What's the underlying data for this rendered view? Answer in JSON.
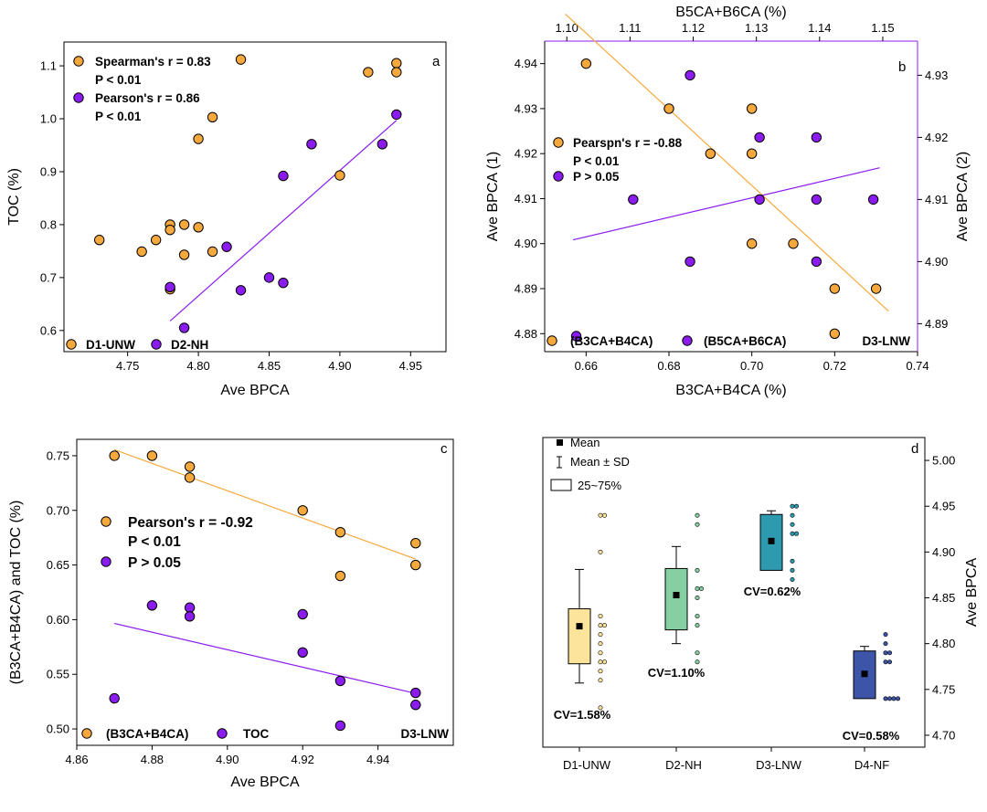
{
  "colors": {
    "orange": "#F5A93C",
    "purple": "#8B1CF0",
    "boxD1": "#FCE49A",
    "boxD2": "#86CFA2",
    "boxD3": "#2E9AB0",
    "boxD4": "#3D55A8"
  },
  "chart_data": [
    {
      "panel": "a",
      "type": "scatter",
      "xlabel": "Ave BPCA",
      "ylabel": "TOC (%)",
      "xlim": [
        4.705,
        4.975
      ],
      "ylim": [
        0.56,
        1.145
      ],
      "xticks": [
        "4.75",
        "4.80",
        "4.85",
        "4.90",
        "4.95"
      ],
      "yticks": [
        "0.6",
        "0.7",
        "0.8",
        "0.9",
        "1.0",
        "1.1"
      ],
      "stats": [
        "Spearman's r = 0.83",
        "P < 0.01",
        "Pearson's r = 0.86",
        "P < 0.01"
      ],
      "legend": [
        "D1-UNW",
        "D2-NH"
      ],
      "series": [
        {
          "name": "D1-UNW",
          "color": "orange",
          "points": [
            [
              4.73,
              0.771
            ],
            [
              4.76,
              0.749
            ],
            [
              4.77,
              0.771
            ],
            [
              4.78,
              0.8
            ],
            [
              4.78,
              0.79
            ],
            [
              4.78,
              0.678
            ],
            [
              4.79,
              0.8
            ],
            [
              4.79,
              0.743
            ],
            [
              4.8,
              0.795
            ],
            [
              4.8,
              0.962
            ],
            [
              4.81,
              1.003
            ],
            [
              4.81,
              0.749
            ],
            [
              4.83,
              1.112
            ],
            [
              4.9,
              0.893
            ],
            [
              4.92,
              1.088
            ],
            [
              4.94,
              1.105
            ],
            [
              4.94,
              1.088
            ]
          ]
        },
        {
          "name": "D2-NH",
          "color": "purple",
          "points": [
            [
              4.78,
              0.682
            ],
            [
              4.79,
              0.605
            ],
            [
              4.82,
              0.758
            ],
            [
              4.83,
              0.676
            ],
            [
              4.85,
              0.7
            ],
            [
              4.86,
              0.69
            ],
            [
              4.86,
              0.892
            ],
            [
              4.88,
              0.952
            ],
            [
              4.93,
              0.952
            ],
            [
              4.94,
              1.008
            ]
          ]
        }
      ],
      "fit": {
        "series": "D2-NH",
        "from": [
          4.78,
          0.618
        ],
        "to": [
          4.94,
          0.997
        ]
      }
    },
    {
      "panel": "b",
      "type": "scatter",
      "xlabel": "B3CA+B4CA (%)",
      "ylabel": "Ave BPCA  (1)",
      "x2label": "B5CA+B6CA (%)",
      "y2label": "Ave BPCA  (2)",
      "xlim": [
        0.65,
        0.74
      ],
      "ylim": [
        4.876,
        4.945
      ],
      "x2lim": [
        1.0965,
        1.1555
      ],
      "y2lim": [
        4.8855,
        4.9355
      ],
      "xticks": [
        "0.66",
        "0.68",
        "0.70",
        "0.72",
        "0.74"
      ],
      "yticks": [
        "4.88",
        "4.89",
        "4.90",
        "4.91",
        "4.92",
        "4.93",
        "4.94"
      ],
      "x2ticks": [
        "1.10",
        "1.11",
        "1.12",
        "1.13",
        "1.14",
        "1.15"
      ],
      "y2ticks": [
        "4.89",
        "4.90",
        "4.91",
        "4.92",
        "4.93"
      ],
      "stats": [
        "Pearspn's r = -0.88",
        "P < 0.01",
        "P > 0.05"
      ],
      "legend": [
        "(B3CA+B4CA)",
        "(B5CA+B6CA)"
      ],
      "tag": "D3-LNW",
      "series": [
        {
          "name": "(B3CA+B4CA)",
          "color": "orange",
          "points": [
            [
              0.66,
              4.94
            ],
            [
              0.68,
              4.93
            ],
            [
              0.69,
              4.92
            ],
            [
              0.7,
              4.93
            ],
            [
              0.7,
              4.92
            ],
            [
              0.7,
              4.9
            ],
            [
              0.71,
              4.9
            ],
            [
              0.72,
              4.89
            ],
            [
              0.72,
              4.88
            ],
            [
              0.73,
              4.89
            ]
          ]
        },
        {
          "name": "(B5CA+B6CA)",
          "color": "purple",
          "points": [
            [
              1.1015,
              4.888
            ],
            [
              1.1105,
              4.91
            ],
            [
              1.1195,
              4.9
            ],
            [
              1.1195,
              4.93
            ],
            [
              1.1305,
              4.91
            ],
            [
              1.1305,
              4.92
            ],
            [
              1.1395,
              4.9
            ],
            [
              1.1395,
              4.91
            ],
            [
              1.1395,
              4.92
            ],
            [
              1.1485,
              4.91
            ]
          ]
        }
      ],
      "fit1": {
        "from": [
          0.655,
          4.951
        ],
        "to": [
          0.733,
          4.885
        ]
      },
      "fit2": {
        "from": [
          1.101,
          4.9035
        ],
        "to": [
          1.1495,
          4.9151
        ]
      }
    },
    {
      "panel": "c",
      "type": "scatter",
      "xlabel": "Ave BPCA",
      "ylabel": "(B3CA+B4CA) and TOC (%)",
      "xlim": [
        4.86,
        4.96
      ],
      "ylim": [
        0.485,
        0.765
      ],
      "xticks": [
        "4.86",
        "4.88",
        "4.90",
        "4.92",
        "4.94"
      ],
      "yticks": [
        "0.50",
        "0.55",
        "0.60",
        "0.65",
        "0.70",
        "0.75"
      ],
      "stats": [
        "Pearson's r = -0.92",
        "P < 0.01",
        "P > 0.05"
      ],
      "legend": [
        "(B3CA+B4CA)",
        "TOC"
      ],
      "tag": "D3-LNW",
      "series": [
        {
          "name": "(B3CA+B4CA)",
          "color": "orange",
          "points": [
            [
              4.87,
              0.75
            ],
            [
              4.88,
              0.75
            ],
            [
              4.89,
              0.74
            ],
            [
              4.89,
              0.73
            ],
            [
              4.92,
              0.7
            ],
            [
              4.93,
              0.68
            ],
            [
              4.93,
              0.64
            ],
            [
              4.95,
              0.67
            ],
            [
              4.95,
              0.65
            ]
          ]
        },
        {
          "name": "TOC",
          "color": "purple",
          "points": [
            [
              4.87,
              0.528
            ],
            [
              4.88,
              0.613
            ],
            [
              4.89,
              0.611
            ],
            [
              4.89,
              0.603
            ],
            [
              4.92,
              0.605
            ],
            [
              4.92,
              0.57
            ],
            [
              4.93,
              0.544
            ],
            [
              4.93,
              0.503
            ],
            [
              4.95,
              0.533
            ],
            [
              4.95,
              0.522
            ]
          ]
        }
      ],
      "fit1": {
        "from": [
          4.87,
          0.7555
        ],
        "to": [
          4.95,
          0.6555
        ]
      },
      "fit2": {
        "from": [
          4.87,
          0.5965
        ],
        "to": [
          4.95,
          0.5325
        ]
      }
    },
    {
      "panel": "d",
      "type": "box",
      "ylabel": "Ave BPCA",
      "ylim": [
        4.687,
        5.025
      ],
      "yticks": [
        "4.70",
        "4.75",
        "4.80",
        "4.85",
        "4.90",
        "4.95",
        "5.00"
      ],
      "categories": [
        "D1-UNW",
        "D2-NH",
        "D3-LNW",
        "D4-NF"
      ],
      "legend": [
        "Mean",
        "Mean ± SD",
        "25~75%"
      ],
      "boxes": [
        {
          "q1": 4.778,
          "q3": 4.838,
          "mean": 4.819,
          "sd_low": 4.757,
          "sd_high": 4.881,
          "cv": "CV=1.58%",
          "color": "boxD1",
          "points": [
            4.94,
            4.94,
            4.9,
            4.83,
            4.82,
            4.82,
            4.81,
            4.8,
            4.79,
            4.78,
            4.78,
            4.77,
            4.76,
            4.73
          ]
        },
        {
          "q1": 4.815,
          "q3": 4.882,
          "mean": 4.853,
          "sd_low": 4.8,
          "sd_high": 4.906,
          "cv": "CV=1.10%",
          "color": "boxD2",
          "points": [
            4.94,
            4.93,
            4.88,
            4.86,
            4.86,
            4.85,
            4.83,
            4.82,
            4.79,
            4.78
          ]
        },
        {
          "q1": 4.88,
          "q3": 4.941,
          "mean": 4.912,
          "sd_low": 4.884,
          "sd_high": 4.945,
          "cv": "CV=0.62%",
          "color": "boxD3",
          "points": [
            4.95,
            4.95,
            4.94,
            4.93,
            4.92,
            4.92,
            4.89,
            4.88,
            4.87
          ]
        },
        {
          "q1": 4.74,
          "q3": 4.792,
          "mean": 4.767,
          "sd_low": 4.742,
          "sd_high": 4.797,
          "cv": "CV=0.58%",
          "color": "boxD4",
          "points": [
            4.81,
            4.8,
            4.79,
            4.79,
            4.78,
            4.78,
            4.74,
            4.74,
            4.74,
            4.74
          ]
        }
      ]
    }
  ]
}
